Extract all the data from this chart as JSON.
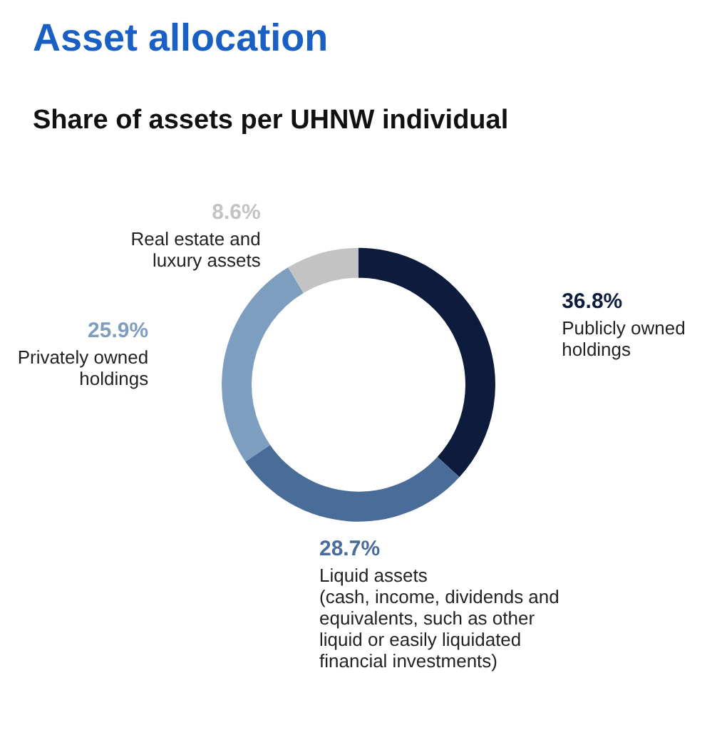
{
  "chart_data": {
    "type": "donut",
    "title": "Asset allocation",
    "subtitle": "Share of assets per UHNW individual",
    "categories": [
      "Publicly owned\nholdings",
      "Liquid assets\n(cash, income, dividends and\nequivalents, such as other\nliquid or easily liquidated\nfinancial investments)",
      "Privately owned\nholdings",
      "Real estate and\nluxury assets"
    ],
    "values": [
      36.8,
      28.7,
      25.9,
      8.6
    ],
    "value_labels": [
      "36.8%",
      "28.7%",
      "25.9%",
      "8.6%"
    ],
    "colors": [
      "#0d1c3d",
      "#4a6c98",
      "#7e9ec0",
      "#c3c3c3"
    ],
    "legend": false
  }
}
